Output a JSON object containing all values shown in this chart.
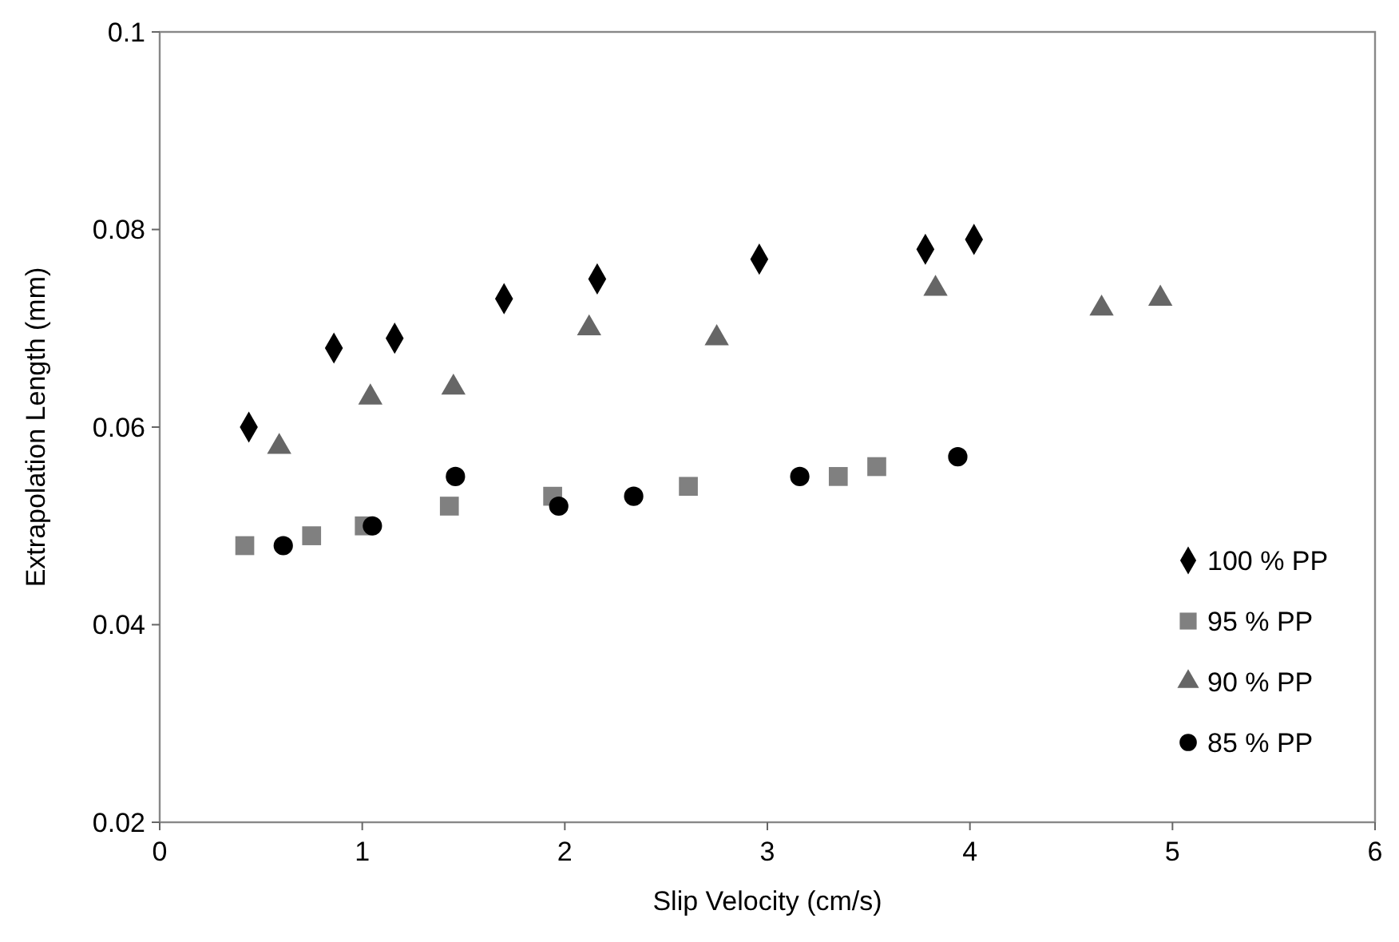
{
  "chart_data": {
    "type": "scatter",
    "xlabel": "Slip Velocity (cm/s)",
    "ylabel": "Extrapolation Length (mm)",
    "xlim": [
      0,
      6
    ],
    "xticks": [
      0,
      1,
      2,
      3,
      4,
      5,
      6
    ],
    "ylim": [
      0.02,
      0.1
    ],
    "yticks": [
      0.02,
      0.04,
      0.06,
      0.08,
      0.1
    ],
    "grid": false,
    "legend": "bottom right",
    "series": [
      {
        "name": "100 % PP",
        "color": "#000000",
        "marker": "diamond",
        "x": [
          0.44,
          0.86,
          1.16,
          1.7,
          2.16,
          2.96,
          3.78,
          4.02
        ],
        "values": [
          0.06,
          0.068,
          0.069,
          0.073,
          0.075,
          0.077,
          0.078,
          0.079
        ]
      },
      {
        "name": "95 % PP",
        "color": "#808080",
        "marker": "square",
        "x": [
          0.42,
          0.75,
          1.01,
          1.43,
          1.94,
          2.61,
          3.35,
          3.54
        ],
        "values": [
          0.048,
          0.049,
          0.05,
          0.052,
          0.053,
          0.054,
          0.055,
          0.056
        ]
      },
      {
        "name": "90 % PP",
        "color": "#666666",
        "marker": "triangle",
        "x": [
          0.59,
          1.04,
          1.45,
          2.12,
          2.75,
          3.83,
          4.65,
          4.94
        ],
        "values": [
          0.058,
          0.063,
          0.064,
          0.07,
          0.069,
          0.074,
          0.072,
          0.073
        ]
      },
      {
        "name": "85 % PP",
        "color": "#000000",
        "marker": "circle",
        "x": [
          0.61,
          1.05,
          1.46,
          1.97,
          2.34,
          3.16,
          3.94
        ],
        "values": [
          0.048,
          0.05,
          0.055,
          0.052,
          0.053,
          0.055,
          0.057
        ]
      }
    ]
  }
}
